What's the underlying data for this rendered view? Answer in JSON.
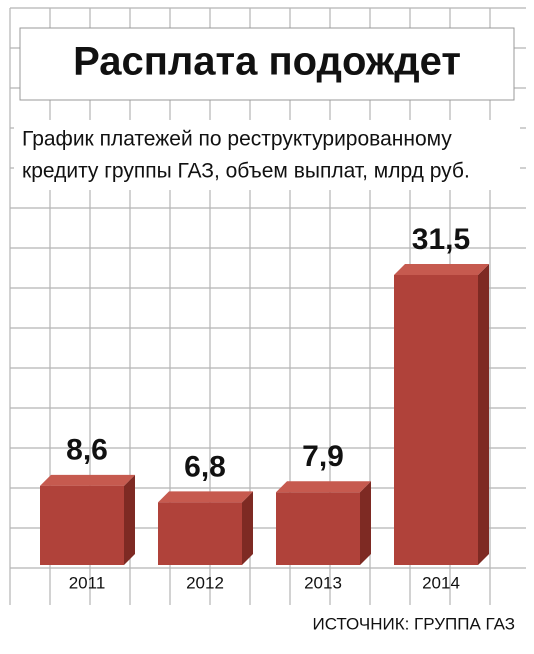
{
  "chart_data": {
    "type": "bar",
    "title": "Расплата подождет",
    "subtitle": [
      "График платежей по реструктурированному",
      "кредиту группы ГАЗ, объем выплат, млрд руб."
    ],
    "categories": [
      "2011",
      "2012",
      "2013",
      "2014"
    ],
    "values": [
      8.6,
      6.8,
      7.9,
      31.5
    ],
    "value_labels": [
      "8,6",
      "6,8",
      "7,9",
      "31,5"
    ],
    "color": "#b0423a",
    "source": "ИСТОЧНИК: ГРУППА ГАЗ"
  }
}
